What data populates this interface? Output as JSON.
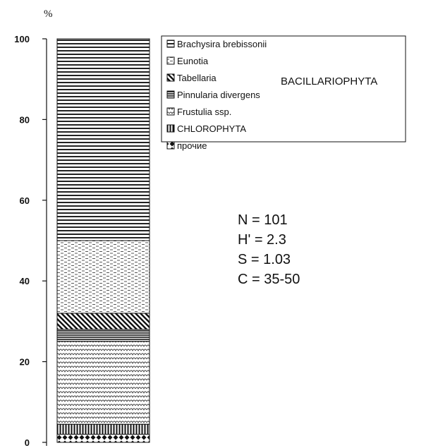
{
  "chart_data": {
    "type": "bar",
    "stacked": true,
    "unit": "%",
    "ylim": [
      0,
      100
    ],
    "yticks": [
      "0",
      "20",
      "40",
      "60",
      "80",
      "100"
    ],
    "series": [
      {
        "name": "прочие",
        "value": 2,
        "pattern": "dots"
      },
      {
        "name": "CHLOROPHYTA",
        "value": 2.5,
        "pattern": "vbars"
      },
      {
        "name": "Frustulia ssp.",
        "value": 20.5,
        "pattern": "scales"
      },
      {
        "name": "Pinnularia divergens",
        "value": 3,
        "pattern": "hlines-dense"
      },
      {
        "name": "Tabellaria",
        "value": 4,
        "pattern": "diag"
      },
      {
        "name": "Eunotia",
        "value": 18,
        "pattern": "dashes"
      },
      {
        "name": "Brachysira brebissonii",
        "value": 50,
        "pattern": "hlines"
      }
    ],
    "legend_order": [
      "Brachysira brebissonii",
      "Eunotia",
      "Tabellaria",
      "Pinnularia divergens",
      "Frustulia ssp.",
      "CHLOROPHYTA",
      "прочие"
    ],
    "group_label": "BACILLARIOPHYTA",
    "stats": [
      "N = 101",
      "H' = 2.3",
      "S = 1.03",
      "C = 35-50"
    ]
  }
}
